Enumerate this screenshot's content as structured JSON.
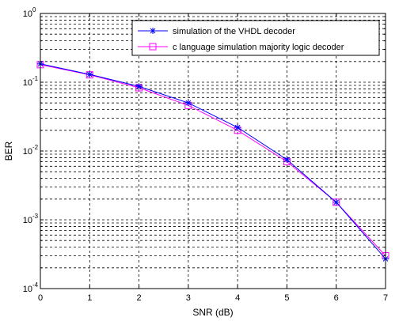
{
  "chart_data": {
    "type": "line",
    "xlabel": "SNR (dB)",
    "ylabel": "BER",
    "xlim": [
      0,
      7
    ],
    "ylim": [
      0.0001,
      1
    ],
    "yscale": "log",
    "grid": true,
    "legend_position": "top-right",
    "x": [
      0,
      1,
      2,
      3,
      4,
      5,
      6,
      7
    ],
    "x_tick_labels": [
      "0",
      "1",
      "2",
      "3",
      "4",
      "5",
      "6",
      "7"
    ],
    "y_tick_labels": [
      {
        "base": "10",
        "exp": "0"
      },
      {
        "base": "10",
        "exp": "-1"
      },
      {
        "base": "10",
        "exp": "-2"
      },
      {
        "base": "10",
        "exp": "-3"
      },
      {
        "base": "10",
        "exp": "-4"
      }
    ],
    "series": [
      {
        "name": "simulation of the VHDL decoder",
        "color": "#0000ff",
        "marker": "asterisk",
        "values": [
          0.185,
          0.13,
          0.087,
          0.05,
          0.022,
          0.0075,
          0.0018,
          0.00027
        ]
      },
      {
        "name": "c language simulation majority logic decoder",
        "color": "#ff00ff",
        "marker": "square",
        "values": [
          0.18,
          0.128,
          0.083,
          0.046,
          0.02,
          0.007,
          0.0018,
          0.0003
        ]
      }
    ]
  }
}
